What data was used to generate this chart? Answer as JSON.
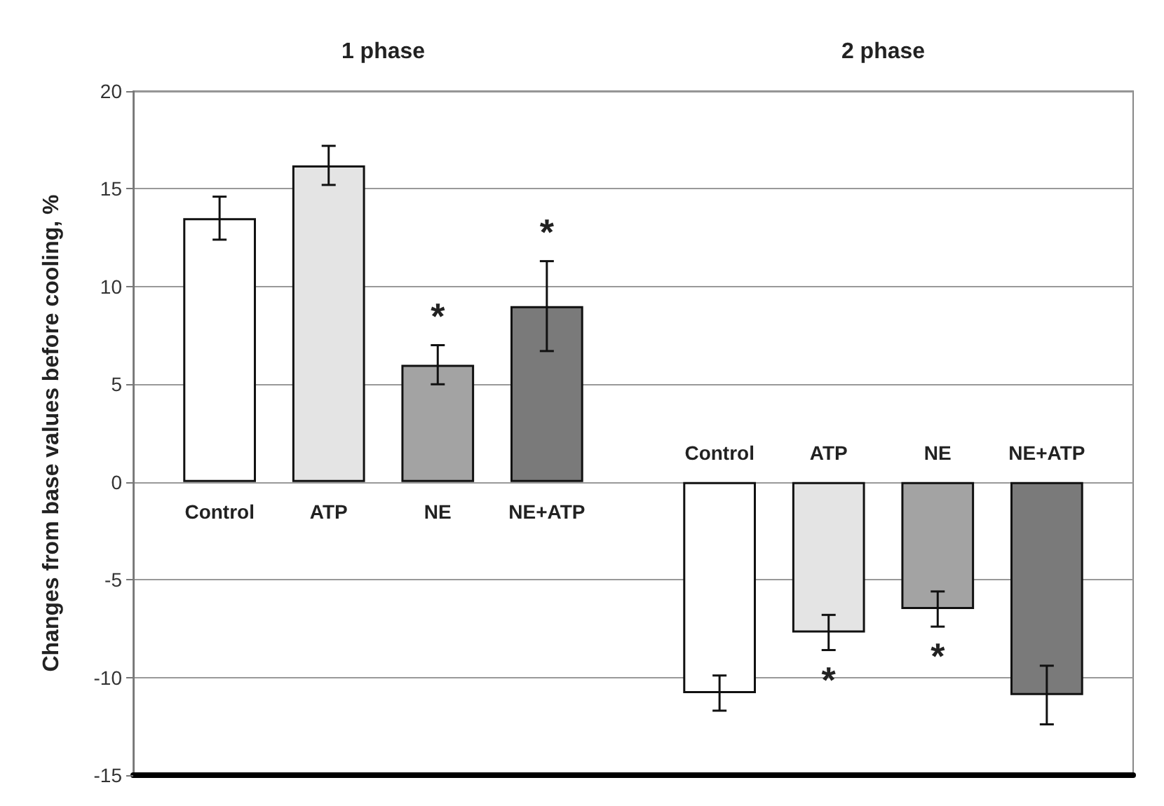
{
  "chart_data": {
    "type": "bar",
    "ylabel": "Changes from base values before cooling, %",
    "categories": [
      "1 phase",
      "2 phase"
    ],
    "series": [
      {
        "name": "Control",
        "color": "#ffffff",
        "values": [
          13.5,
          -10.8
        ],
        "errors": [
          1.1,
          0.9
        ]
      },
      {
        "name": "ATP",
        "color": "#e4e4e4",
        "values": [
          16.2,
          -7.7
        ],
        "errors": [
          1.0,
          0.9
        ],
        "value_labels": [
          null,
          "*"
        ]
      },
      {
        "name": "NE",
        "color": "#a3a3a3",
        "values": [
          6.0,
          -6.5
        ],
        "errors": [
          1.0,
          0.9
        ],
        "value_labels": [
          "*",
          "*"
        ]
      },
      {
        "name": "NE+ATP",
        "color": "#7a7a7a",
        "values": [
          9.0,
          -10.9
        ],
        "errors": [
          2.3,
          1.5
        ],
        "value_labels": [
          "*",
          null
        ]
      }
    ],
    "ylim": [
      -15,
      20
    ],
    "yticks": [
      -15,
      -10,
      -5,
      0,
      5,
      10,
      15,
      20
    ],
    "grid": "y",
    "legend": false
  }
}
